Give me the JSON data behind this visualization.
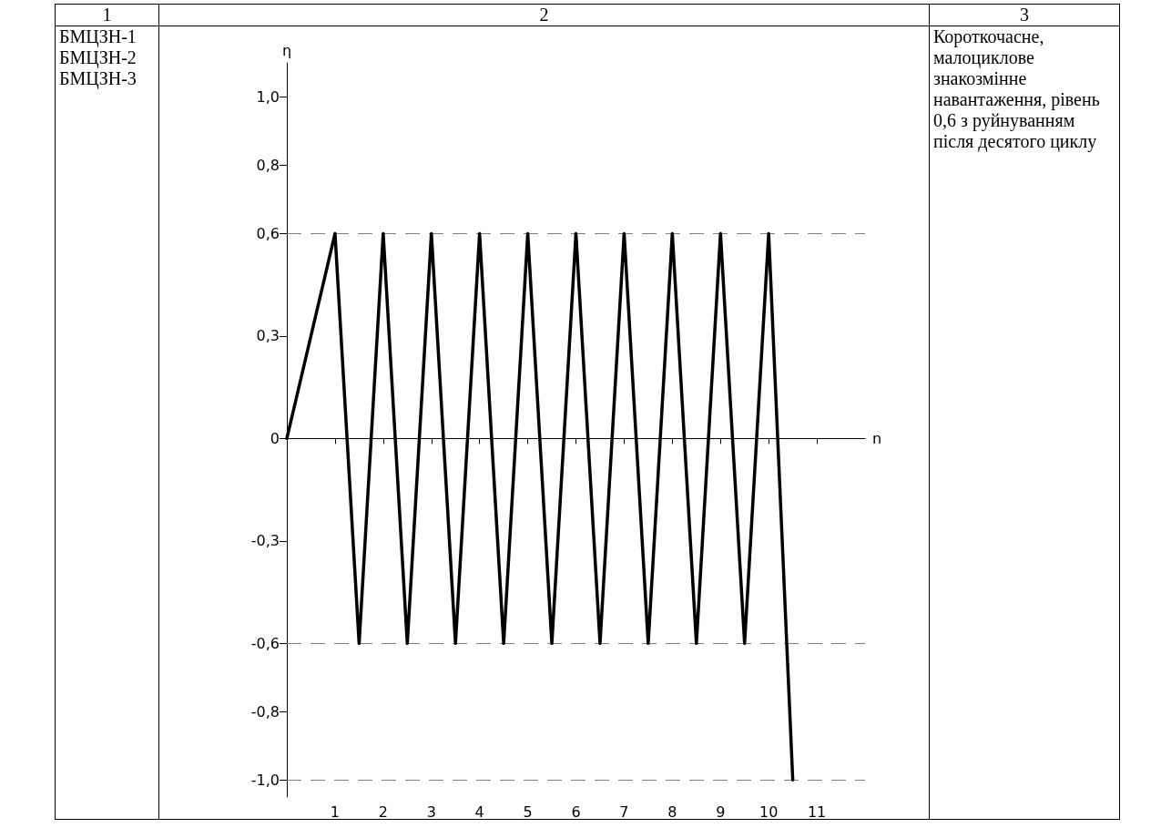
{
  "chart_data": {
    "type": "line",
    "xlabel": "n",
    "ylabel": "η",
    "x": [
      0,
      1,
      1.5,
      2,
      2.5,
      3,
      3.5,
      4,
      4.5,
      5,
      5.5,
      6,
      6.5,
      7,
      7.5,
      8,
      8.5,
      9,
      9.5,
      10,
      10.5
    ],
    "series": [
      {
        "color": "#000000",
        "values": [
          0,
          0.6,
          -0.6,
          0.6,
          -0.6,
          0.6,
          -0.6,
          0.6,
          -0.6,
          0.6,
          -0.6,
          0.6,
          -0.6,
          0.6,
          -0.6,
          0.6,
          -0.6,
          0.6,
          -0.6,
          0.6,
          -1.0
        ]
      }
    ],
    "xlim": [
      0,
      12
    ],
    "xticks": [
      1,
      2,
      3,
      4,
      5,
      6,
      7,
      8,
      9,
      10,
      11
    ],
    "ylim": [
      -1.05,
      1.1
    ],
    "yticks": [
      {
        "value": -1.0,
        "label": "-1,0"
      },
      {
        "value": -0.8,
        "label": "-0,8"
      },
      {
        "value": -0.6,
        "label": "-0,6"
      },
      {
        "value": -0.3,
        "label": "-0,3"
      },
      0,
      {
        "value": 0.3,
        "label": "0,3"
      },
      {
        "value": 0.6,
        "label": "0,6"
      },
      {
        "value": 0.8,
        "label": "0,8"
      },
      {
        "value": 1.0,
        "label": "1,0"
      }
    ],
    "ref_lines": [
      {
        "axis": "y",
        "value": 0.6,
        "color": "#808080",
        "line_style": "dashed"
      },
      {
        "axis": "y",
        "value": -0.6,
        "color": "#808080",
        "line_style": "dashed"
      },
      {
        "axis": "y",
        "value": -1.0,
        "color": "#808080",
        "line_style": "dashed"
      }
    ],
    "grid": false,
    "marker": "none",
    "line_style": "solid",
    "annotations": [
      "1",
      "2",
      "3",
      "БМЦЗН-1",
      "БМЦЗН-2",
      "БМЦЗН-3",
      "Короткочасне, малоциклове знакозмінне навантаження, рівень 0,6 з руйнуванням після десятого циклу"
    ]
  }
}
